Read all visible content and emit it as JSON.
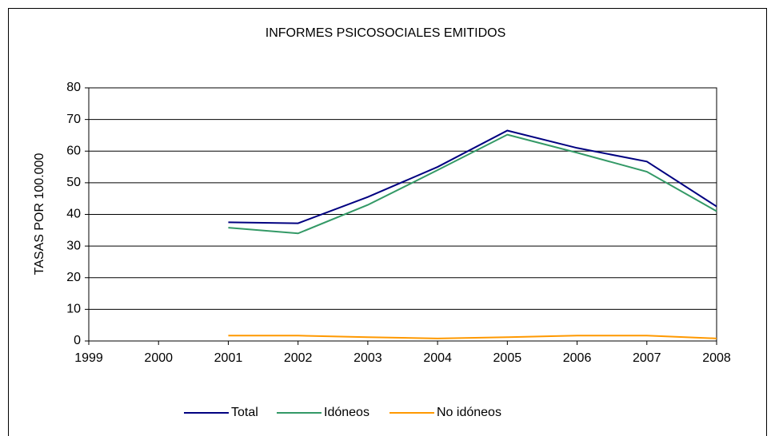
{
  "chart_data": {
    "type": "line",
    "title": "INFORMES PSICOSOCIALES EMITIDOS",
    "y_label": "TASAS POR 100.000",
    "categories": [
      "1999",
      "2000",
      "2001",
      "2002",
      "2003",
      "2004",
      "2005",
      "2006",
      "2007",
      "2008"
    ],
    "series": [
      {
        "name": "Total",
        "color": "#000080",
        "values": [
          null,
          null,
          37.5,
          37.2,
          45.5,
          55,
          66.5,
          61,
          56.7,
          42.5
        ]
      },
      {
        "name": "Idóneos",
        "color": "#339966",
        "values": [
          null,
          null,
          35.8,
          34,
          43,
          54,
          65.2,
          59.5,
          53.5,
          41
        ]
      },
      {
        "name": "No idóneos",
        "color": "#FF9900",
        "values": [
          null,
          null,
          1.7,
          1.7,
          1.2,
          0.8,
          1.2,
          1.7,
          1.7,
          0.8
        ]
      }
    ],
    "ylim": [
      0,
      80
    ],
    "yticks": [
      0,
      10,
      20,
      30,
      40,
      50,
      60,
      70,
      80
    ],
    "grid": true,
    "legend": "bottom"
  }
}
